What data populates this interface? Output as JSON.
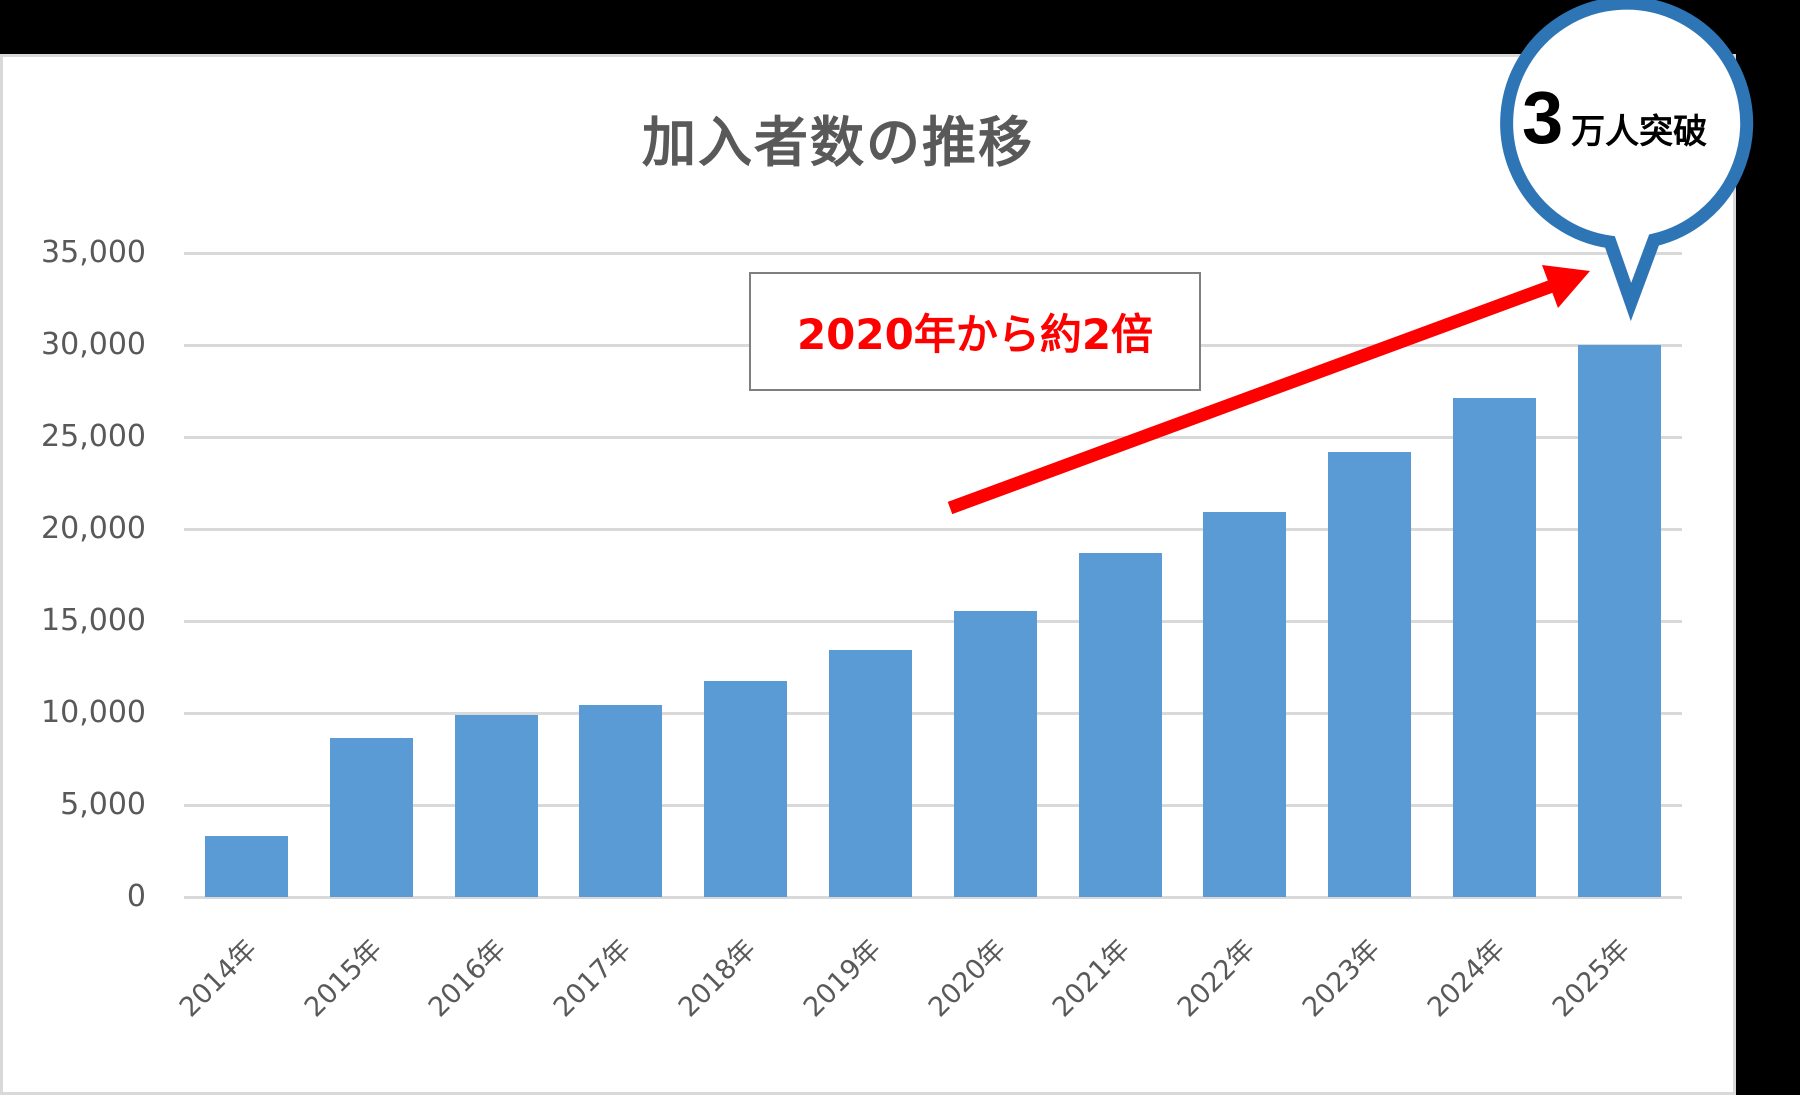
{
  "chart": {
    "title": "加入者数の推移",
    "bar_color": "#5b9bd5",
    "grid_color": "#d9d9d9",
    "text_color": "#595959"
  },
  "y_axis": {
    "ticks": [
      "35,000",
      "30,000",
      "25,000",
      "20,000",
      "15,000",
      "10,000",
      "5,000",
      "0"
    ]
  },
  "x_axis": {
    "labels": [
      "2014年",
      "2015年",
      "2016年",
      "2017年",
      "2018年",
      "2019年",
      "2020年",
      "2021年",
      "2022年",
      "2023年",
      "2024年",
      "2025年"
    ]
  },
  "annotation": {
    "text": "2020年から約2倍",
    "color": "#ff0000"
  },
  "callout": {
    "number": "3",
    "text": "万人突破",
    "border_color": "#2e75b6"
  },
  "chart_data": {
    "type": "bar",
    "title": "加入者数の推移",
    "xlabel": "",
    "ylabel": "",
    "categories": [
      "2014年",
      "2015年",
      "2016年",
      "2017年",
      "2018年",
      "2019年",
      "2020年",
      "2021年",
      "2022年",
      "2023年",
      "2024年",
      "2025年"
    ],
    "values": [
      3300,
      8650,
      9900,
      10450,
      11750,
      13400,
      15550,
      18700,
      20950,
      24200,
      27100,
      30000
    ],
    "ylim": [
      0,
      35000
    ],
    "yticks": [
      0,
      5000,
      10000,
      15000,
      20000,
      25000,
      30000,
      35000
    ],
    "grid": true,
    "legend": null,
    "annotations": [
      {
        "text": "2020年から約2倍",
        "type": "textbox+arrow",
        "from": "2020年",
        "to": "2025年"
      },
      {
        "text": "3万人突破",
        "type": "callout",
        "target": "2025年"
      }
    ]
  }
}
